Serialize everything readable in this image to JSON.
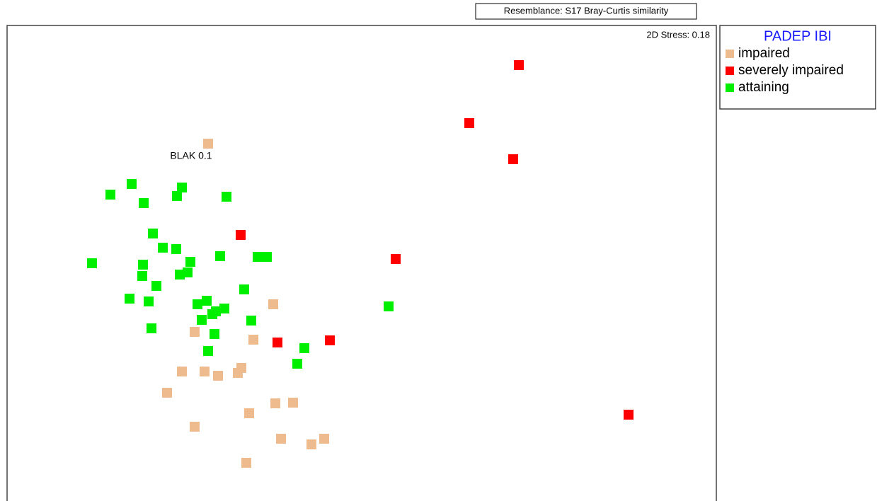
{
  "chart_data": {
    "type": "scatter",
    "subtitle": "Resemblance: S17 Bray-Curtis similarity",
    "annotations": [
      "2D Stress: 0.18",
      "BLAK 0.1"
    ],
    "legend_title": "PADEP IBI",
    "xlim": [
      0,
      1002
    ],
    "ylim": [
      0,
      672
    ],
    "series": [
      {
        "name": "impaired",
        "color": "#edbb8e",
        "x": [
          284,
          376,
          265,
          348,
          247,
          279,
          298,
          326,
          331,
          226,
          342,
          379,
          404,
          265,
          387,
          430,
          448,
          338
        ],
        "values": [
          505,
          278,
          239,
          228,
          183,
          183,
          177,
          181,
          188,
          153,
          124,
          138,
          139,
          105,
          88,
          80,
          88,
          54
        ]
      },
      {
        "name": "severely impaired",
        "color": "#ff0000",
        "x": [
          723,
          653,
          715,
          330,
          549,
          382,
          456,
          878
        ],
        "values": [
          616,
          534,
          483,
          376,
          342,
          224,
          227,
          122
        ]
      },
      {
        "name": "attaining",
        "color": "#00ee00",
        "x": [
          146,
          176,
          193,
          240,
          247,
          310,
          206,
          220,
          239,
          301,
          354,
          367,
          120,
          192,
          259,
          255,
          244,
          191,
          211,
          335,
          173,
          200,
          269,
          282,
          307,
          295,
          290,
          275,
          345,
          204,
          293,
          420,
          284,
          410,
          539
        ],
        "values": [
          433,
          448,
          421,
          431,
          443,
          430,
          378,
          358,
          356,
          346,
          345,
          345,
          336,
          334,
          338,
          323,
          320,
          318,
          304,
          299,
          286,
          282,
          278,
          283,
          272,
          268,
          264,
          256,
          255,
          244,
          236,
          216,
          212,
          194,
          275
        ]
      }
    ]
  }
}
